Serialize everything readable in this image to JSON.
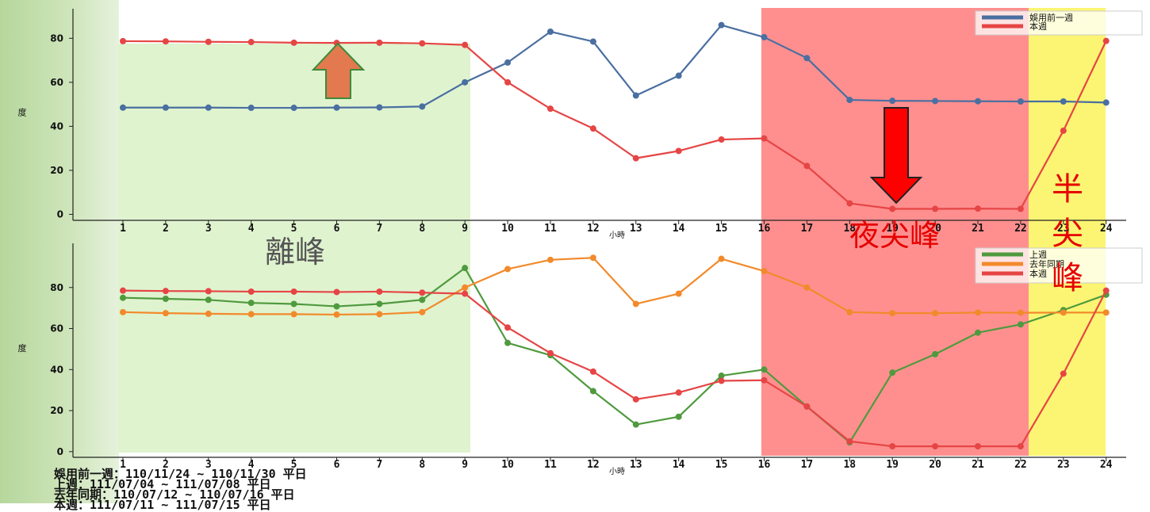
{
  "colors": {
    "pre_month": "#4a6fa0",
    "this_week": "#e64545",
    "last_week": "#4f9a3e",
    "last_year": "#f28a2b",
    "off_peak_zone": "#dff3cf",
    "night_peak_zone": "#ff8f8f",
    "half_peak_zone": "#fbf573",
    "annotation_red": "#e60000",
    "arrow_up": "#e2794f"
  },
  "zone_labels": {
    "off_peak": "離峰",
    "night_peak": "夜尖峰",
    "half_peak": [
      "半",
      "尖",
      "峰"
    ]
  },
  "notes": [
    "娛用前一週：110/11/24 ~ 110/11/30 平日",
    "上週：111/07/04 ~ 111/07/08 平日",
    "去年同期：110/07/12 ~ 110/07/16 平日",
    "本週：111/07/11 ~ 111/07/15 平日"
  ],
  "chart_data": [
    {
      "type": "line",
      "xlabel": "小時",
      "ylabel": "度",
      "x": [
        1,
        2,
        3,
        4,
        5,
        6,
        7,
        8,
        9,
        10,
        11,
        12,
        13,
        14,
        15,
        16,
        17,
        18,
        19,
        20,
        21,
        22,
        23,
        24
      ],
      "ylim": [
        -2,
        92
      ],
      "yticks": [
        0,
        20,
        40,
        60,
        80
      ],
      "legend_position": "top-right",
      "series": [
        {
          "name": "娛用前一週",
          "color_key": "pre_month",
          "values": [
            48.5,
            48.5,
            48.5,
            48.4,
            48.4,
            48.5,
            48.6,
            49,
            60,
            69,
            83,
            78.5,
            54,
            63,
            86,
            80.5,
            71,
            52,
            51.6,
            51.5,
            51.4,
            51.3,
            51.3,
            50.8
          ]
        },
        {
          "name": "本週",
          "color_key": "this_week",
          "values": [
            78.7,
            78.6,
            78.4,
            78.3,
            78,
            77.9,
            78,
            77.7,
            77,
            60,
            48,
            39,
            25.5,
            28.8,
            34,
            34.5,
            22,
            5,
            2.5,
            2.5,
            2.6,
            2.5,
            38,
            78.8
          ]
        }
      ]
    },
    {
      "type": "line",
      "xlabel": "小時",
      "ylabel": "度",
      "x": [
        1,
        2,
        3,
        4,
        5,
        6,
        7,
        8,
        9,
        10,
        11,
        12,
        13,
        14,
        15,
        16,
        17,
        18,
        19,
        20,
        21,
        22,
        23,
        24
      ],
      "ylim": [
        -2,
        100
      ],
      "yticks": [
        0,
        20,
        40,
        60,
        80
      ],
      "legend_position": "top-right",
      "series": [
        {
          "name": "上週",
          "color_key": "last_week",
          "values": [
            75,
            74.5,
            74,
            72.5,
            72,
            70.8,
            72,
            74,
            89.5,
            53,
            47,
            29.5,
            13.2,
            17,
            37,
            40,
            22,
            4.5,
            38.5,
            47.5,
            58,
            62,
            69,
            76.5
          ]
        },
        {
          "name": "去年同期",
          "color_key": "last_year",
          "values": [
            68,
            67.5,
            67.2,
            67,
            67,
            66.8,
            67,
            68,
            80,
            89,
            93.5,
            94.5,
            72,
            77,
            94,
            88,
            80,
            68,
            67.5,
            67.5,
            67.8,
            67.7,
            67.8,
            67.8
          ]
        },
        {
          "name": "本週",
          "color_key": "this_week",
          "values": [
            78.5,
            78.3,
            78.2,
            78,
            78,
            77.8,
            78,
            77.5,
            77,
            60.5,
            48,
            39,
            25.5,
            28.8,
            34.5,
            34.8,
            22,
            5,
            2.6,
            2.6,
            2.6,
            2.6,
            38,
            78.5
          ]
        }
      ]
    }
  ]
}
